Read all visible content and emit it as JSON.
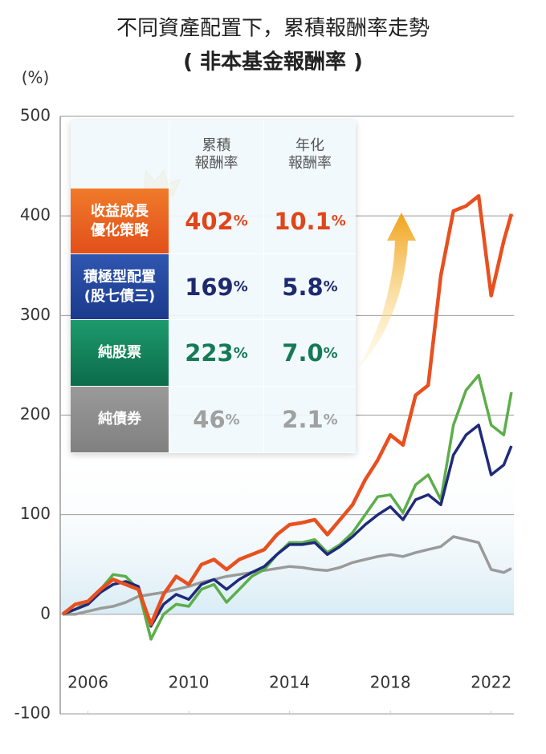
{
  "chart_data": {
    "type": "line",
    "title": "不同資產配置下，累積報酬率走勢",
    "subtitle": "( 非本基金報酬率 )",
    "y_label": "(%)",
    "x": [
      2005.0,
      2005.5,
      2006.0,
      2006.5,
      2007.0,
      2007.5,
      2008.0,
      2008.5,
      2009.0,
      2009.5,
      2010.0,
      2010.5,
      2011.0,
      2011.5,
      2012.0,
      2012.5,
      2013.0,
      2013.5,
      2014.0,
      2014.5,
      2015.0,
      2015.5,
      2016.0,
      2016.5,
      2017.0,
      2017.5,
      2018.0,
      2018.5,
      2019.0,
      2019.5,
      2020.0,
      2020.5,
      2021.0,
      2021.5,
      2022.0,
      2022.5,
      2022.8
    ],
    "series": [
      {
        "name": "收益成長\n優化策略",
        "color": "#e8501f",
        "values": [
          0,
          10,
          13,
          25,
          35,
          30,
          25,
          -10,
          20,
          38,
          30,
          50,
          55,
          45,
          55,
          60,
          65,
          80,
          90,
          92,
          95,
          80,
          95,
          110,
          135,
          155,
          180,
          170,
          220,
          230,
          340,
          405,
          410,
          420,
          320,
          375,
          402
        ]
      },
      {
        "name": "積極型配置\n(股七債三)",
        "color": "#1f2a7a",
        "values": [
          0,
          5,
          10,
          22,
          30,
          33,
          28,
          -12,
          10,
          20,
          15,
          30,
          35,
          25,
          35,
          42,
          48,
          60,
          70,
          70,
          72,
          60,
          68,
          78,
          90,
          100,
          108,
          95,
          115,
          120,
          110,
          160,
          180,
          190,
          140,
          150,
          169
        ]
      },
      {
        "name": "純股票",
        "color": "#5cae4a",
        "values": [
          0,
          5,
          12,
          25,
          40,
          38,
          25,
          -25,
          0,
          10,
          8,
          25,
          30,
          12,
          25,
          38,
          45,
          60,
          72,
          72,
          75,
          62,
          70,
          82,
          100,
          118,
          120,
          102,
          130,
          140,
          115,
          190,
          225,
          240,
          190,
          180,
          223
        ]
      },
      {
        "name": "純債券",
        "color": "#9a9a9a",
        "values": [
          0,
          0,
          3,
          6,
          8,
          12,
          18,
          20,
          22,
          25,
          28,
          32,
          35,
          38,
          40,
          42,
          44,
          46,
          48,
          47,
          45,
          44,
          47,
          52,
          55,
          58,
          60,
          58,
          62,
          65,
          68,
          78,
          75,
          72,
          45,
          42,
          46
        ]
      }
    ],
    "xlim": [
      2004.9,
      2022.9
    ],
    "xticks": [
      2006,
      2010,
      2014,
      2018,
      2022
    ],
    "ylim": [
      -100,
      500
    ],
    "yticks": [
      -100,
      0,
      100,
      200,
      300,
      400,
      500
    ],
    "grid": true
  },
  "table": {
    "header": [
      "累積\n報酬率",
      "年化\n報酬率"
    ],
    "unit": "%",
    "rows": [
      [
        "402",
        "10.1"
      ],
      [
        "169",
        "5.8"
      ],
      [
        "223",
        "7.0"
      ],
      [
        "46",
        "2.1"
      ]
    ]
  }
}
